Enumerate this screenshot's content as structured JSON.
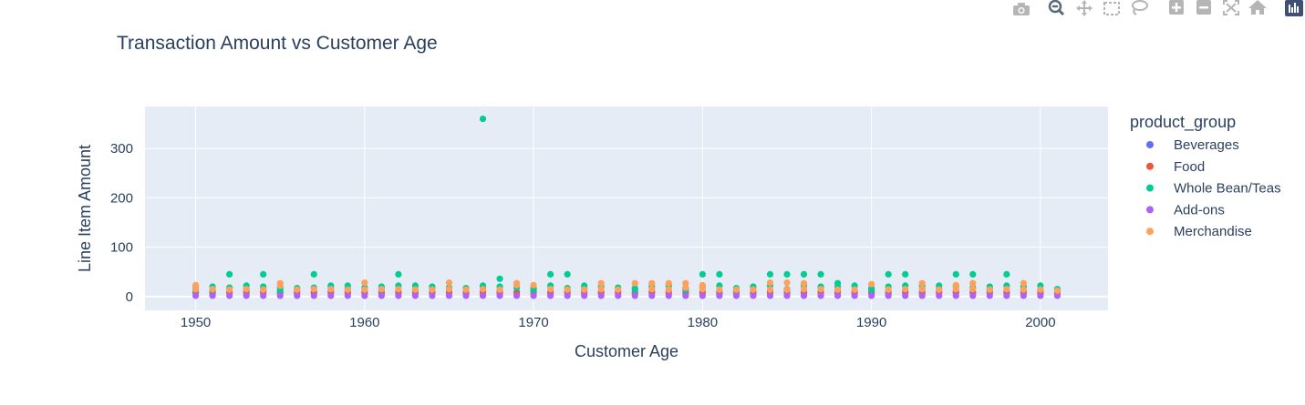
{
  "chart_data": {
    "type": "scatter",
    "title": "Transaction Amount vs Customer Age",
    "xlabel": "Customer Age",
    "ylabel": "Line Item Amount",
    "xlim": [
      1947,
      2004
    ],
    "ylim": [
      -28,
      385
    ],
    "x_ticks": [
      1950,
      1960,
      1970,
      1980,
      1990,
      2000
    ],
    "y_ticks": [
      0,
      100,
      200,
      300
    ],
    "grid": true,
    "legend_title": "product_group",
    "legend_position": "right",
    "series": [
      {
        "name": "Beverages",
        "color": "#636efa",
        "x": [
          1950,
          1951,
          1952,
          1953,
          1954,
          1955,
          1956,
          1957,
          1958,
          1959,
          1960,
          1961,
          1962,
          1963,
          1964,
          1965,
          1966,
          1967,
          1968,
          1969,
          1970,
          1971,
          1972,
          1973,
          1974,
          1975,
          1976,
          1977,
          1978,
          1979,
          1980,
          1981,
          1982,
          1983,
          1984,
          1985,
          1986,
          1987,
          1988,
          1989,
          1990,
          1991,
          1992,
          1993,
          1994,
          1995,
          1996,
          1997,
          1998,
          1999,
          2000,
          2001
        ],
        "y": [
          9,
          10,
          9,
          10,
          10,
          9,
          10,
          9,
          10,
          10,
          10,
          9,
          10,
          10,
          9,
          10,
          9,
          10,
          10,
          9,
          10,
          9,
          10,
          10,
          9,
          10,
          9,
          10,
          10,
          9,
          10,
          9,
          10,
          9,
          10,
          10,
          9,
          10,
          9,
          10,
          10,
          9,
          10,
          9,
          10,
          10,
          9,
          10,
          9,
          10,
          9,
          10
        ]
      },
      {
        "name": "Food",
        "color": "#ef553b",
        "x": [
          1950,
          1951,
          1952,
          1953,
          1954,
          1955,
          1956,
          1957,
          1958,
          1959,
          1960,
          1961,
          1962,
          1963,
          1964,
          1965,
          1966,
          1967,
          1968,
          1969,
          1970,
          1971,
          1972,
          1973,
          1974,
          1975,
          1976,
          1977,
          1978,
          1979,
          1980,
          1981,
          1982,
          1983,
          1984,
          1985,
          1986,
          1987,
          1988,
          1989,
          1990,
          1991,
          1992,
          1993,
          1994,
          1995,
          1996,
          1997,
          1998,
          1999,
          2000,
          2001
        ],
        "y": [
          7,
          6,
          7,
          6,
          7,
          7,
          6,
          7,
          6,
          7,
          7,
          6,
          7,
          6,
          7,
          7,
          6,
          7,
          6,
          7,
          7,
          6,
          7,
          6,
          7,
          7,
          6,
          7,
          6,
          7,
          7,
          6,
          7,
          6,
          7,
          7,
          6,
          7,
          6,
          7,
          7,
          6,
          7,
          6,
          7,
          7,
          6,
          7,
          6,
          7,
          6,
          7
        ]
      },
      {
        "name": "Whole Bean/Teas",
        "color": "#00cc96",
        "x": [
          1950,
          1951,
          1952,
          1953,
          1954,
          1955,
          1956,
          1957,
          1958,
          1959,
          1960,
          1961,
          1962,
          1963,
          1964,
          1965,
          1966,
          1967,
          1968,
          1969,
          1970,
          1971,
          1972,
          1973,
          1974,
          1975,
          1976,
          1977,
          1978,
          1979,
          1980,
          1981,
          1982,
          1983,
          1984,
          1985,
          1986,
          1987,
          1988,
          1989,
          1990,
          1991,
          1992,
          1993,
          1994,
          1995,
          1996,
          1997,
          1998,
          1999,
          2000,
          2001,
          1952,
          1954,
          1957,
          1962,
          1967,
          1968,
          1971,
          1972,
          1980,
          1981,
          1984,
          1985,
          1986,
          1987,
          1991,
          1992,
          1995,
          1996,
          1998,
          1950,
          1951,
          1953,
          1954,
          1955,
          1958,
          1959,
          1961,
          1963,
          1964,
          1967,
          1970,
          1973,
          1976,
          1979,
          1982,
          1985,
          1988,
          1990,
          1993,
          1994,
          1997,
          1999,
          2000
        ],
        "y": [
          18,
          20,
          18,
          22,
          20,
          18,
          17,
          18,
          22,
          22,
          18,
          20,
          22,
          22,
          20,
          18,
          17,
          22,
          20,
          18,
          17,
          22,
          17,
          22,
          20,
          18,
          17,
          20,
          22,
          18,
          20,
          22,
          17,
          20,
          22,
          15,
          22,
          20,
          27,
          22,
          17,
          20,
          22,
          22,
          22,
          20,
          18,
          20,
          22,
          20,
          22,
          15,
          45,
          45,
          45,
          45,
          360,
          36,
          45,
          45,
          45,
          45,
          45,
          45,
          45,
          45,
          45,
          45,
          45,
          45,
          45,
          14,
          13,
          15,
          15,
          12,
          16,
          16,
          14,
          14,
          15,
          18,
          14,
          15,
          14,
          14,
          12,
          14,
          20,
          14,
          15,
          15,
          14,
          14,
          14
        ]
      },
      {
        "name": "Add-ons",
        "color": "#ab63fa",
        "x": [
          1950,
          1951,
          1952,
          1953,
          1954,
          1955,
          1956,
          1957,
          1958,
          1959,
          1960,
          1961,
          1962,
          1963,
          1964,
          1965,
          1966,
          1967,
          1968,
          1969,
          1970,
          1971,
          1972,
          1973,
          1974,
          1975,
          1976,
          1977,
          1978,
          1979,
          1980,
          1981,
          1982,
          1983,
          1984,
          1985,
          1986,
          1987,
          1988,
          1989,
          1990,
          1991,
          1992,
          1993,
          1994,
          1995,
          1996,
          1997,
          1998,
          1999,
          2000,
          2001
        ],
        "y": [
          1.5,
          1.6,
          1.5,
          1.6,
          1.5,
          1.6,
          1.5,
          1.6,
          1.5,
          1.6,
          1.5,
          1.6,
          1.5,
          1.6,
          1.5,
          1.6,
          1.5,
          1.6,
          1.5,
          1.6,
          1.5,
          1.6,
          1.5,
          1.6,
          1.5,
          1.6,
          1.5,
          1.6,
          1.5,
          1.6,
          1.5,
          1.6,
          1.5,
          1.6,
          1.5,
          1.6,
          1.5,
          1.6,
          1.5,
          1.6,
          1.5,
          1.6,
          1.5,
          1.6,
          1.5,
          1.6,
          1.5,
          1.6,
          1.5,
          1.6,
          1.5,
          1.6
        ]
      },
      {
        "name": "Merchandise",
        "color": "#ffa15a",
        "x": [
          1950,
          1951,
          1952,
          1953,
          1954,
          1955,
          1956,
          1957,
          1958,
          1959,
          1960,
          1961,
          1962,
          1963,
          1964,
          1965,
          1966,
          1967,
          1968,
          1969,
          1970,
          1971,
          1972,
          1973,
          1974,
          1975,
          1976,
          1977,
          1978,
          1979,
          1980,
          1981,
          1982,
          1983,
          1984,
          1985,
          1986,
          1987,
          1988,
          1989,
          1990,
          1991,
          1992,
          1993,
          1994,
          1995,
          1996,
          1997,
          1998,
          1999,
          2000,
          2001,
          1950,
          1955,
          1960,
          1965,
          1969,
          1974,
          1977,
          1978,
          1979,
          1980,
          1984,
          1985,
          1986,
          1993,
          1995,
          1996,
          1999
        ],
        "y": [
          23,
          15,
          14,
          15,
          14,
          27,
          14,
          15,
          15,
          14,
          14,
          15,
          15,
          14,
          14,
          15,
          14,
          15,
          14,
          27,
          23,
          15,
          14,
          14,
          27,
          14,
          27,
          27,
          14,
          27,
          23,
          14,
          14,
          14,
          28,
          14,
          27,
          15,
          14,
          14,
          25,
          14,
          15,
          27,
          14,
          23,
          27,
          14,
          15,
          14,
          14,
          12,
          15,
          22,
          28,
          28,
          23,
          15,
          15,
          27,
          18,
          15,
          14,
          28,
          15,
          15,
          15,
          15,
          27
        ]
      }
    ]
  },
  "modebar": {
    "buttons": [
      {
        "icon": "camera-icon",
        "label": "Download plot as a png"
      },
      {
        "icon": "zoom-icon",
        "label": "Zoom"
      },
      {
        "icon": "pan-icon",
        "label": "Pan"
      },
      {
        "icon": "box-select-icon",
        "label": "Box Select"
      },
      {
        "icon": "lasso-select-icon",
        "label": "Lasso Select"
      },
      {
        "icon": "zoom-in-icon",
        "label": "Zoom in"
      },
      {
        "icon": "zoom-out-icon",
        "label": "Zoom out"
      },
      {
        "icon": "autoscale-icon",
        "label": "Autoscale"
      },
      {
        "icon": "reset-axes-icon",
        "label": "Reset axes"
      },
      {
        "icon": "plotly-logo-icon",
        "label": "Produced with Plotly"
      }
    ]
  }
}
